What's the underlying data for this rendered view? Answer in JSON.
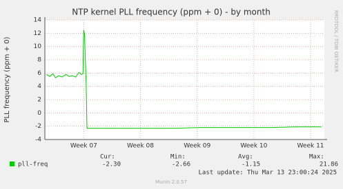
{
  "chart_data": {
    "type": "line",
    "title": "NTP kernel PLL frequency (ppm + 0) - by month",
    "y_label": "PLL frequency (ppm + 0)",
    "x": [
      0.2,
      0.6,
      1.0,
      1.3,
      1.7,
      2.1,
      2.6,
      3.0,
      3.4,
      3.8,
      4.2,
      4.5,
      4.7,
      4.8,
      4.9,
      5.1,
      5.2,
      7,
      10,
      13,
      16,
      19,
      22,
      25,
      28,
      31,
      34.1
    ],
    "series": [
      {
        "name": "pll-freq",
        "color": "#00cc00",
        "values": [
          5.8,
          5.5,
          5.9,
          5.3,
          5.6,
          5.4,
          5.8,
          5.5,
          5.6,
          5.4,
          6.1,
          5.8,
          5.9,
          12.5,
          11.8,
          4.0,
          -2.3,
          -2.3,
          -2.3,
          -2.3,
          -2.3,
          -2.2,
          -2.2,
          -2.2,
          -2.2,
          -2.1,
          -2.1
        ]
      }
    ],
    "xlim": [
      0,
      34.5
    ],
    "xticks": [
      {
        "value": 4.8,
        "label": "Week 07"
      },
      {
        "value": 11.8,
        "label": "Week 08"
      },
      {
        "value": 18.8,
        "label": "Week 09"
      },
      {
        "value": 25.8,
        "label": "Week 10"
      },
      {
        "value": 32.8,
        "label": "Week 11"
      }
    ],
    "ylim": [
      -4,
      14
    ],
    "yticks": [
      -4,
      -2,
      0,
      2,
      4,
      6,
      8,
      10,
      12,
      14
    ],
    "grid": true
  },
  "legend_stats": {
    "headers": [
      "Cur:",
      "Min:",
      "Avg:",
      "Max:"
    ],
    "values": [
      "-2.30",
      "-2.66",
      "-1.15",
      "21.86"
    ]
  },
  "last_update": "Last update: Thu Mar 13 23:00:24 2025",
  "footer": "Munin 2.0.57",
  "side_text": "RRDTOOL / TOBI OETIKER"
}
